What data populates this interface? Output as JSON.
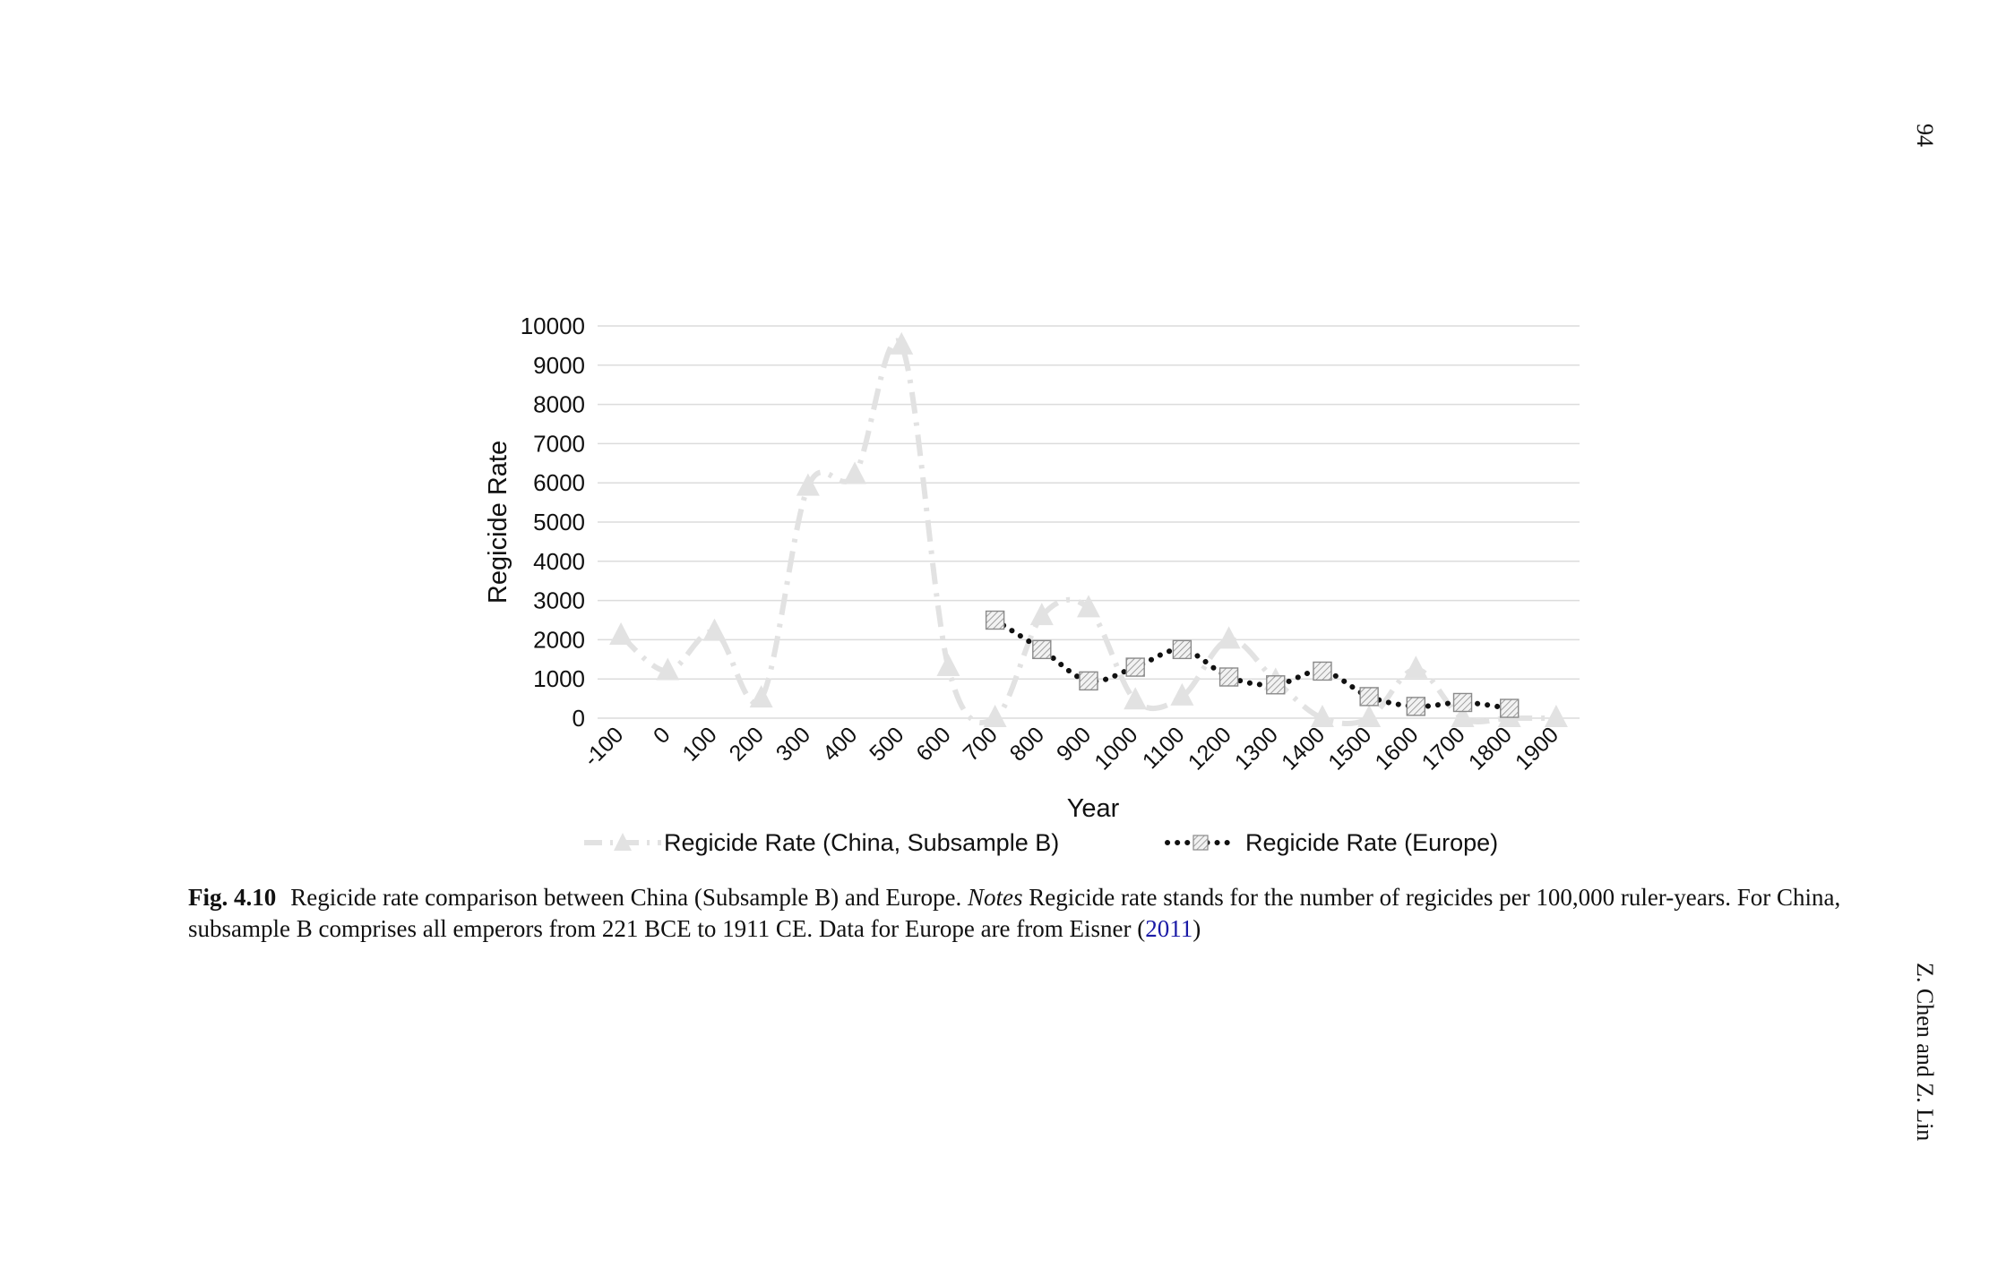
{
  "page": {
    "page_number": "94",
    "running_head": "Z. Chen and Z. Lin"
  },
  "caption": {
    "label": "Fig. 4.10",
    "text_1": "Regicide rate comparison between China (Subsample B) and Europe. ",
    "notes_label": "Notes",
    "text_2": " Regicide rate stands for the number of regicides per 100,000 ruler-years. For China, subsample B comprises all emperors from 221 BCE to 1911 CE. Data for Europe are from Eisner (",
    "citation_year": "2011",
    "text_3": ")"
  },
  "chart_data": {
    "type": "line",
    "title": "",
    "xlabel": "Year",
    "ylabel": "Regicide Rate",
    "ylim": [
      0,
      10000
    ],
    "y_ticks": [
      "0",
      "1000",
      "2000",
      "3000",
      "4000",
      "5000",
      "6000",
      "7000",
      "8000",
      "9000",
      "10000"
    ],
    "categories": [
      "-100",
      "0",
      "100",
      "200",
      "300",
      "400",
      "500",
      "600",
      "700",
      "800",
      "900",
      "1000",
      "1100",
      "1200",
      "1300",
      "1400",
      "1500",
      "1600",
      "1700",
      "1800",
      "1900"
    ],
    "grid": true,
    "legend_position": "bottom",
    "series": [
      {
        "name": "Regicide Rate (China, Subsample B)",
        "style": "dash-dot",
        "marker": "triangle",
        "color": "#e2e2e2",
        "values": [
          2100,
          1200,
          2200,
          500,
          5900,
          6200,
          9500,
          1300,
          0,
          2600,
          2800,
          450,
          550,
          2000,
          950,
          0,
          0,
          1250,
          0,
          0,
          0
        ]
      },
      {
        "name": "Regicide Rate (Europe)",
        "style": "dotted",
        "marker": "hatched-square",
        "color": "#111111",
        "values": [
          null,
          null,
          null,
          null,
          null,
          null,
          null,
          null,
          2500,
          1750,
          950,
          1300,
          1750,
          1050,
          850,
          1200,
          550,
          300,
          400,
          250,
          null
        ]
      }
    ]
  }
}
